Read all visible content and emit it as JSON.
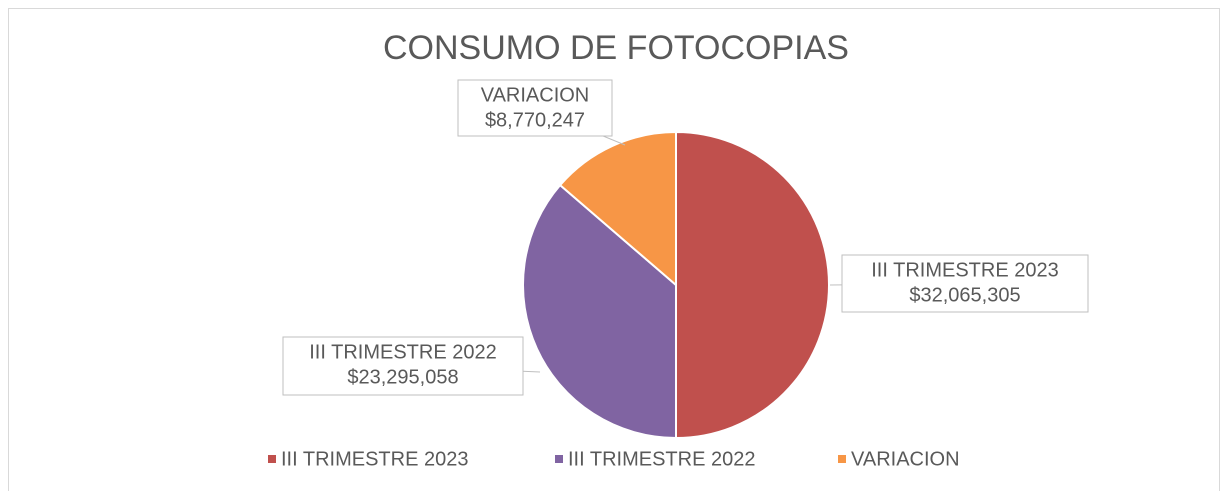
{
  "chart_data": {
    "type": "pie",
    "title": "CONSUMO DE FOTOCOPIAS",
    "categories": [
      "III TRIMESTRE 2023",
      "III TRIMESTRE 2022",
      "VARIACION"
    ],
    "values": [
      32065305,
      23295058,
      8770247
    ],
    "value_labels": [
      "$32,065,305",
      "$23,295,058",
      "$8,770,247"
    ],
    "colors": [
      "#c0504d",
      "#8064a2",
      "#f79646"
    ],
    "legend": "bottom"
  }
}
